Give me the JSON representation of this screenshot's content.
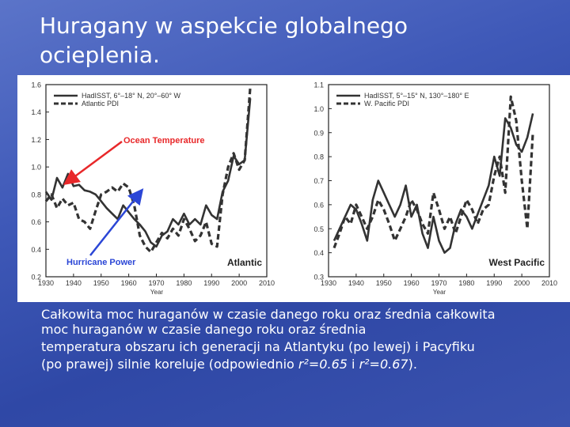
{
  "slide": {
    "title_line1": "Huragany w aspekcie globalnego",
    "title_line2": "ocieplenia.",
    "caption_line1": "Całkowita moc huraganów w czasie danego roku oraz średnia całkowita",
    "caption_line2": "moc huraganów w czasie danego roku oraz średnia",
    "caption_line3": "temperatura obszaru ich generacji na Atlantyku (po lewej) i Pacyfiku",
    "caption_line4_start": "(po prawej) silnie koreluje (odpowiednio ",
    "caption_r2_a": "r²=0.65",
    "caption_mid": " i ",
    "caption_r2_b": "r²=0.67",
    "caption_end": ")."
  },
  "chart_data": [
    {
      "type": "line",
      "title": "Atlantic",
      "xlabel": "Year",
      "ylabel": "",
      "xlim": [
        1930,
        2010
      ],
      "ylim": [
        0.2,
        1.6
      ],
      "xticks": [
        1930,
        1940,
        1950,
        1960,
        1970,
        1980,
        1990,
        2000,
        2010
      ],
      "yticks": [
        "0.2",
        "0.4",
        "0.6",
        "0.8",
        "1.0",
        "1.2",
        "1.4",
        "1.6"
      ],
      "legend_position": "top-left",
      "annotations": [
        {
          "text": "Ocean Temperature",
          "color": "#e8282a"
        },
        {
          "text": "Hurricane Power",
          "color": "#2b46d6"
        }
      ],
      "series": [
        {
          "name": "HadISST, 6°–18° N, 20°–60° W",
          "style": "solid",
          "x": [
            1930,
            1932,
            1934,
            1936,
            1938,
            1940,
            1942,
            1944,
            1946,
            1948,
            1950,
            1952,
            1954,
            1956,
            1958,
            1960,
            1962,
            1964,
            1966,
            1968,
            1970,
            1972,
            1974,
            1976,
            1978,
            1980,
            1982,
            1984,
            1986,
            1988,
            1990,
            1992,
            1994,
            1996,
            1998,
            2000,
            2002,
            2004
          ],
          "values": [
            0.82,
            0.76,
            0.92,
            0.85,
            0.95,
            0.86,
            0.87,
            0.83,
            0.82,
            0.8,
            0.75,
            0.7,
            0.66,
            0.62,
            0.72,
            0.67,
            0.62,
            0.58,
            0.53,
            0.45,
            0.42,
            0.5,
            0.53,
            0.62,
            0.58,
            0.66,
            0.58,
            0.62,
            0.58,
            0.72,
            0.65,
            0.62,
            0.82,
            0.9,
            1.08,
            1.02,
            1.05,
            1.5
          ]
        },
        {
          "name": "Atlantic PDI",
          "style": "dashed",
          "x": [
            1930,
            1932,
            1934,
            1936,
            1938,
            1940,
            1942,
            1944,
            1946,
            1948,
            1950,
            1952,
            1954,
            1956,
            1958,
            1960,
            1962,
            1964,
            1966,
            1968,
            1970,
            1972,
            1974,
            1976,
            1978,
            1980,
            1982,
            1984,
            1986,
            1988,
            1990,
            1992,
            1994,
            1996,
            1998,
            2000,
            2002,
            2004
          ],
          "values": [
            0.75,
            0.8,
            0.7,
            0.77,
            0.72,
            0.74,
            0.62,
            0.6,
            0.55,
            0.68,
            0.8,
            0.82,
            0.85,
            0.82,
            0.88,
            0.85,
            0.72,
            0.5,
            0.42,
            0.38,
            0.45,
            0.52,
            0.48,
            0.55,
            0.5,
            0.62,
            0.55,
            0.46,
            0.5,
            0.6,
            0.44,
            0.42,
            0.8,
            1.0,
            1.1,
            0.98,
            1.05,
            1.58
          ]
        }
      ]
    },
    {
      "type": "line",
      "title": "West Pacific",
      "xlabel": "Year",
      "ylabel": "",
      "xlim": [
        1930,
        2010
      ],
      "ylim": [
        0.3,
        1.1
      ],
      "xticks": [
        1930,
        1940,
        1950,
        1960,
        1970,
        1980,
        1990,
        2000,
        2010
      ],
      "yticks": [
        "0.3",
        "0.4",
        "0.5",
        "0.6",
        "0.7",
        "0.8",
        "0.9",
        "1.0",
        "1.1"
      ],
      "legend_position": "top-left",
      "series": [
        {
          "name": "HadISST, 5°–15° N, 130°–180° E",
          "style": "solid",
          "x": [
            1932,
            1934,
            1936,
            1938,
            1940,
            1942,
            1944,
            1946,
            1948,
            1950,
            1952,
            1954,
            1956,
            1958,
            1960,
            1962,
            1964,
            1966,
            1968,
            1970,
            1972,
            1974,
            1976,
            1978,
            1980,
            1982,
            1984,
            1986,
            1988,
            1990,
            1992,
            1994,
            1996,
            1998,
            2000,
            2002,
            2004
          ],
          "values": [
            0.45,
            0.5,
            0.55,
            0.6,
            0.58,
            0.52,
            0.45,
            0.62,
            0.7,
            0.65,
            0.6,
            0.55,
            0.6,
            0.68,
            0.55,
            0.6,
            0.48,
            0.42,
            0.55,
            0.45,
            0.4,
            0.42,
            0.52,
            0.58,
            0.55,
            0.5,
            0.56,
            0.62,
            0.68,
            0.8,
            0.72,
            0.96,
            0.92,
            0.85,
            0.82,
            0.88,
            0.98
          ]
        },
        {
          "name": "W. Pacific PDI",
          "style": "dashed",
          "x": [
            1932,
            1934,
            1936,
            1938,
            1940,
            1942,
            1944,
            1946,
            1948,
            1950,
            1952,
            1954,
            1956,
            1958,
            1960,
            1962,
            1964,
            1966,
            1968,
            1970,
            1972,
            1974,
            1976,
            1978,
            1980,
            1982,
            1984,
            1986,
            1988,
            1990,
            1992,
            1994,
            1996,
            1998,
            2000,
            2002,
            2004
          ],
          "values": [
            0.42,
            0.48,
            0.55,
            0.52,
            0.6,
            0.55,
            0.5,
            0.55,
            0.62,
            0.58,
            0.52,
            0.45,
            0.5,
            0.55,
            0.62,
            0.58,
            0.52,
            0.48,
            0.65,
            0.58,
            0.5,
            0.55,
            0.48,
            0.55,
            0.62,
            0.58,
            0.52,
            0.58,
            0.6,
            0.72,
            0.8,
            0.65,
            1.05,
            0.95,
            0.7,
            0.5,
            0.9
          ]
        }
      ]
    }
  ]
}
